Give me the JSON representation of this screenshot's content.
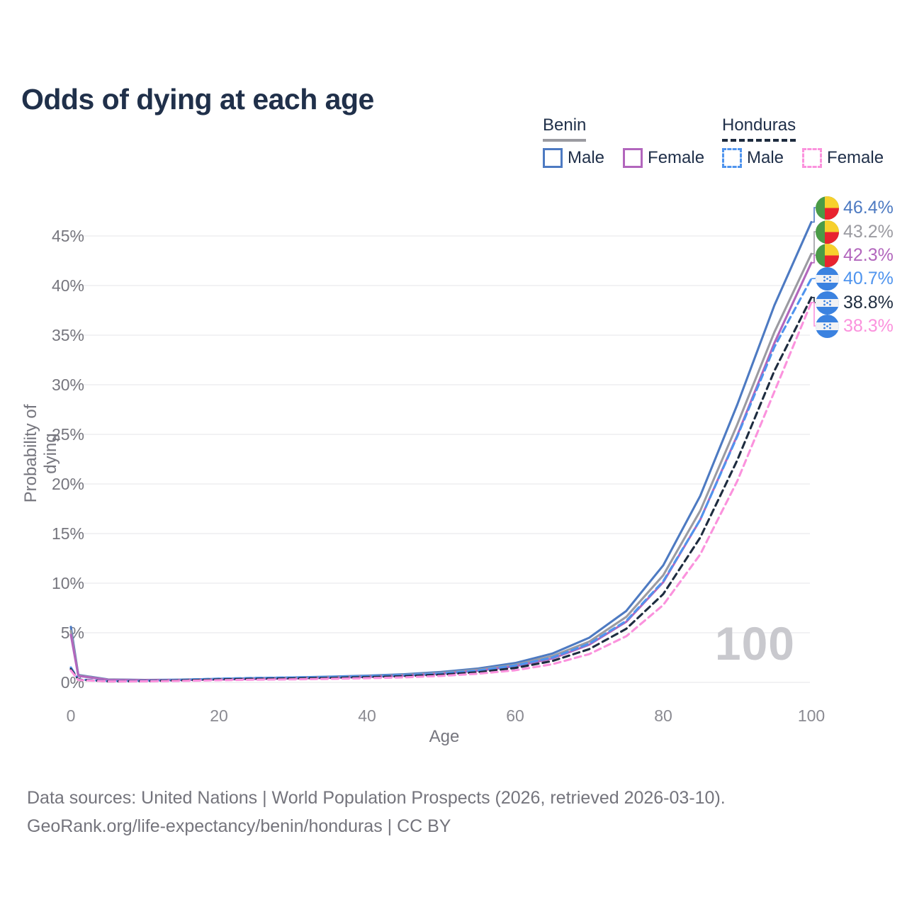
{
  "title": "Odds of dying at each age",
  "legend": {
    "groups": [
      {
        "title": "Benin",
        "line_style": "solid",
        "underline_color": "#9b9ba1",
        "items": [
          {
            "label": "Male",
            "color": "#4d7ac2"
          },
          {
            "label": "Female",
            "color": "#b266bd"
          }
        ]
      },
      {
        "title": "Honduras",
        "line_style": "dashed",
        "underline_color": "#1e2c3f",
        "items": [
          {
            "label": "Male",
            "color": "#4f94ee"
          },
          {
            "label": "Female",
            "color": "#fb92dd"
          }
        ]
      }
    ]
  },
  "chart_data": {
    "type": "line",
    "title": "Odds of dying at each age",
    "xlabel": "Age",
    "ylabel": "Probability of dying",
    "xlim": [
      0,
      100
    ],
    "ylim_percent": [
      0,
      48
    ],
    "x_ticks": [
      0,
      20,
      40,
      60,
      80,
      100
    ],
    "y_ticks_percent": [
      0,
      5,
      10,
      15,
      20,
      25,
      30,
      35,
      40,
      45
    ],
    "grid": "horizontal-only",
    "legend_position": "top-right",
    "hover_age_watermark": "100",
    "series": [
      {
        "id": "benin-male",
        "name": "Benin Male",
        "country": "Benin",
        "sex": "Male",
        "color": "#4d7ac2",
        "dash": false,
        "flag": "benin",
        "end_label": "46.4%",
        "points": [
          [
            0,
            5.6
          ],
          [
            1,
            0.75
          ],
          [
            5,
            0.3
          ],
          [
            10,
            0.25
          ],
          [
            15,
            0.28
          ],
          [
            20,
            0.35
          ],
          [
            25,
            0.42
          ],
          [
            30,
            0.5
          ],
          [
            35,
            0.58
          ],
          [
            40,
            0.68
          ],
          [
            45,
            0.82
          ],
          [
            50,
            1.05
          ],
          [
            55,
            1.4
          ],
          [
            60,
            1.95
          ],
          [
            65,
            2.9
          ],
          [
            70,
            4.5
          ],
          [
            75,
            7.2
          ],
          [
            80,
            11.8
          ],
          [
            85,
            18.8
          ],
          [
            90,
            28.0
          ],
          [
            95,
            38.0
          ],
          [
            100,
            46.4
          ]
        ]
      },
      {
        "id": "benin-all",
        "name": "Benin Both sexes",
        "country": "Benin",
        "sex": "Both",
        "color": "#9b9ba1",
        "dash": false,
        "flag": "benin",
        "end_label": "43.2%",
        "points": [
          [
            0,
            5.2
          ],
          [
            1,
            0.7
          ],
          [
            5,
            0.28
          ],
          [
            10,
            0.23
          ],
          [
            15,
            0.26
          ],
          [
            20,
            0.32
          ],
          [
            25,
            0.38
          ],
          [
            30,
            0.45
          ],
          [
            35,
            0.52
          ],
          [
            40,
            0.62
          ],
          [
            45,
            0.75
          ],
          [
            50,
            0.95
          ],
          [
            55,
            1.28
          ],
          [
            60,
            1.78
          ],
          [
            65,
            2.65
          ],
          [
            70,
            4.1
          ],
          [
            75,
            6.6
          ],
          [
            80,
            10.8
          ],
          [
            85,
            17.3
          ],
          [
            90,
            26.0
          ],
          [
            95,
            35.3
          ],
          [
            100,
            43.2
          ]
        ]
      },
      {
        "id": "benin-female",
        "name": "Benin Female",
        "country": "Benin",
        "sex": "Female",
        "color": "#b266bd",
        "dash": false,
        "flag": "benin",
        "end_label": "42.3%",
        "points": [
          [
            0,
            4.8
          ],
          [
            1,
            0.65
          ],
          [
            5,
            0.26
          ],
          [
            10,
            0.22
          ],
          [
            15,
            0.24
          ],
          [
            20,
            0.29
          ],
          [
            25,
            0.34
          ],
          [
            30,
            0.4
          ],
          [
            35,
            0.47
          ],
          [
            40,
            0.56
          ],
          [
            45,
            0.68
          ],
          [
            50,
            0.87
          ],
          [
            55,
            1.17
          ],
          [
            60,
            1.62
          ],
          [
            65,
            2.4
          ],
          [
            70,
            3.8
          ],
          [
            75,
            6.1
          ],
          [
            80,
            10.1
          ],
          [
            85,
            16.4
          ],
          [
            90,
            24.9
          ],
          [
            95,
            34.2
          ],
          [
            100,
            42.3
          ]
        ]
      },
      {
        "id": "honduras-male",
        "name": "Honduras Male",
        "country": "Honduras",
        "sex": "Male",
        "color": "#4f94ee",
        "dash": true,
        "flag": "honduras",
        "end_label": "40.7%",
        "points": [
          [
            0,
            1.5
          ],
          [
            1,
            0.3
          ],
          [
            5,
            0.12
          ],
          [
            10,
            0.15
          ],
          [
            15,
            0.25
          ],
          [
            20,
            0.38
          ],
          [
            25,
            0.45
          ],
          [
            30,
            0.5
          ],
          [
            35,
            0.55
          ],
          [
            40,
            0.62
          ],
          [
            45,
            0.73
          ],
          [
            50,
            0.9
          ],
          [
            55,
            1.2
          ],
          [
            60,
            1.7
          ],
          [
            65,
            2.5
          ],
          [
            70,
            3.9
          ],
          [
            75,
            6.2
          ],
          [
            80,
            10.2
          ],
          [
            85,
            16.4
          ],
          [
            90,
            24.8
          ],
          [
            95,
            33.8
          ],
          [
            100,
            40.7
          ]
        ]
      },
      {
        "id": "honduras-all",
        "name": "Honduras Both sexes",
        "country": "Honduras",
        "sex": "Both",
        "color": "#1e2c3f",
        "dash": true,
        "flag": "honduras",
        "end_label": "38.8%",
        "points": [
          [
            0,
            1.35
          ],
          [
            1,
            0.27
          ],
          [
            5,
            0.1
          ],
          [
            10,
            0.12
          ],
          [
            15,
            0.2
          ],
          [
            20,
            0.3
          ],
          [
            25,
            0.36
          ],
          [
            30,
            0.4
          ],
          [
            35,
            0.45
          ],
          [
            40,
            0.52
          ],
          [
            45,
            0.62
          ],
          [
            50,
            0.78
          ],
          [
            55,
            1.03
          ],
          [
            60,
            1.45
          ],
          [
            65,
            2.15
          ],
          [
            70,
            3.35
          ],
          [
            75,
            5.4
          ],
          [
            80,
            8.9
          ],
          [
            85,
            14.6
          ],
          [
            90,
            22.4
          ],
          [
            95,
            31.4
          ],
          [
            100,
            38.8
          ]
        ]
      },
      {
        "id": "honduras-female",
        "name": "Honduras Female",
        "country": "Honduras",
        "sex": "Female",
        "color": "#fb92dd",
        "dash": true,
        "flag": "honduras",
        "end_label": "38.3%",
        "points": [
          [
            0,
            1.2
          ],
          [
            1,
            0.24
          ],
          [
            5,
            0.09
          ],
          [
            10,
            0.1
          ],
          [
            15,
            0.15
          ],
          [
            20,
            0.22
          ],
          [
            25,
            0.27
          ],
          [
            30,
            0.31
          ],
          [
            35,
            0.36
          ],
          [
            40,
            0.42
          ],
          [
            45,
            0.51
          ],
          [
            50,
            0.65
          ],
          [
            55,
            0.87
          ],
          [
            60,
            1.22
          ],
          [
            65,
            1.83
          ],
          [
            70,
            2.85
          ],
          [
            75,
            4.65
          ],
          [
            80,
            7.8
          ],
          [
            85,
            12.9
          ],
          [
            90,
            20.3
          ],
          [
            95,
            29.3
          ],
          [
            100,
            38.3
          ]
        ]
      }
    ],
    "flag_colors": {
      "benin": {
        "green": "#4a9b47",
        "yellow": "#f7d02c",
        "red": "#e8232f"
      },
      "honduras": {
        "blue": "#3b82e0",
        "white": "#f2f2f4"
      }
    }
  },
  "axes": {
    "x_title": "Age",
    "y_title": "Probability of dying"
  },
  "watermark": "100",
  "footer": {
    "line1": "Data sources: United Nations | World Population Prospects (2026, retrieved 2026-03-10).",
    "line2": "GeoRank.org/life-expectancy/benin/honduras | CC BY"
  }
}
